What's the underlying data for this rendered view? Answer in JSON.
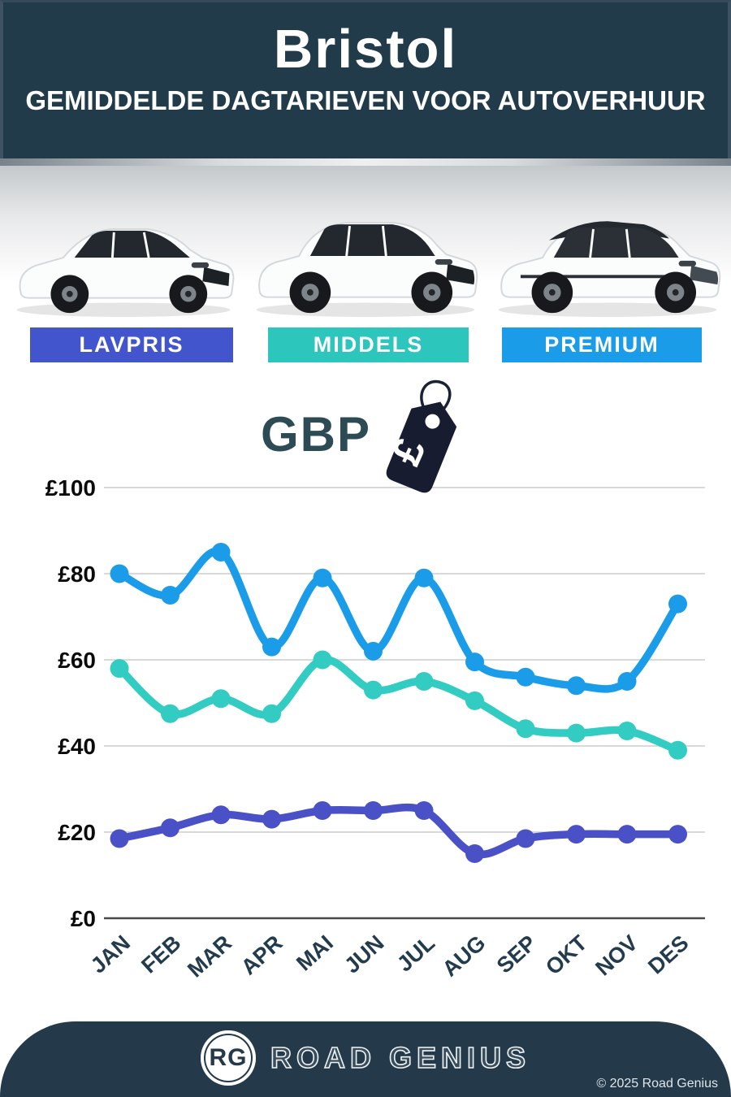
{
  "header": {
    "city": "Bristol",
    "subtitle": "GEMIDDELDE DAGTARIEVEN VOOR AUTOVERHUUR"
  },
  "tiers": [
    {
      "label": "LAVPRIS",
      "color": "#4355cd"
    },
    {
      "label": "MIDDELS",
      "color": "#2cc6bc"
    },
    {
      "label": "PREMIUM",
      "color": "#1b9ce9"
    }
  ],
  "currency": {
    "label": "GBP",
    "symbol": "£"
  },
  "chart_data": {
    "type": "line",
    "categories": [
      "JAN",
      "FEB",
      "MAR",
      "APR",
      "MAI",
      "JUN",
      "JUL",
      "AUG",
      "SEP",
      "OKT",
      "NOV",
      "DES"
    ],
    "series": [
      {
        "name": "PREMIUM",
        "color": "#1b9ce9",
        "values": [
          80,
          75,
          85,
          63,
          79,
          62,
          79,
          59.5,
          56,
          54,
          55,
          73
        ]
      },
      {
        "name": "MIDDELS",
        "color": "#33ccc2",
        "values": [
          58,
          47.5,
          51,
          47.5,
          60,
          53,
          55,
          50.5,
          44,
          43,
          43.5,
          39
        ]
      },
      {
        "name": "LAVPRIS",
        "color": "#4a51c7",
        "values": [
          18.5,
          21,
          24,
          23,
          25,
          25,
          25,
          15,
          18.5,
          19.5,
          19.5,
          19.5
        ]
      }
    ],
    "title": "",
    "xlabel": "",
    "ylabel": "",
    "ylim": [
      0,
      100
    ],
    "yticks": [
      0,
      20,
      40,
      60,
      80,
      100
    ],
    "ytick_labels": [
      "£0",
      "£20",
      "£40",
      "£60",
      "£80",
      "£100"
    ],
    "grid": true,
    "legend_position": "none",
    "gridline_color": "#d9d9d9",
    "axis_color": "#4a4a4a",
    "tick_label_color": "#0b0b0b",
    "xtick_label_color": "#223b4d"
  },
  "footer": {
    "logo_initials": "RG",
    "brand": "ROAD GENIUS",
    "copyright": "© 2025 Road Genius"
  }
}
